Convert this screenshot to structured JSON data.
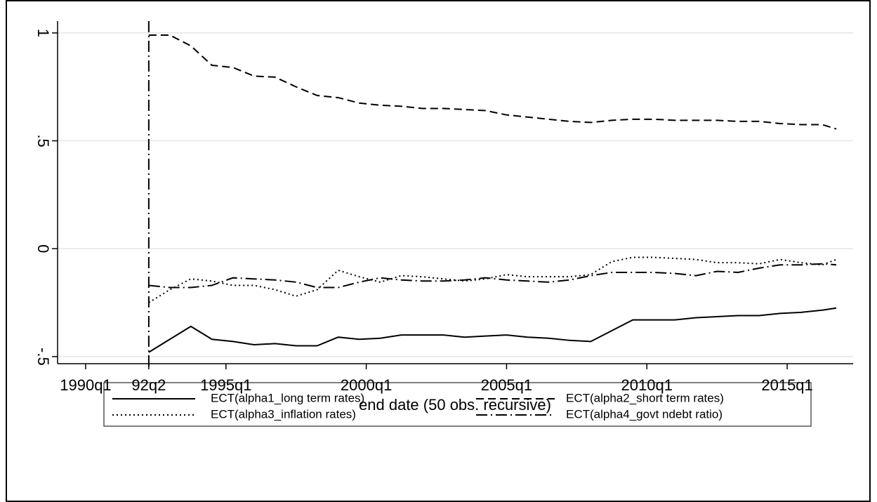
{
  "chart_data": {
    "type": "line",
    "x_label": "end date (50 obs. recursive)",
    "x": [
      129,
      132,
      135,
      138,
      141,
      144,
      147,
      150,
      153,
      156,
      159,
      162,
      165,
      168,
      171,
      174,
      177,
      180,
      183,
      186,
      189,
      192,
      195,
      198,
      201,
      204,
      207,
      210,
      213,
      216,
      219,
      222,
      225,
      227
    ],
    "xlim": [
      116,
      229.4
    ],
    "ylim": [
      -0.533,
      1.055
    ],
    "xticks": [
      {
        "value": 120,
        "label": "1990q1"
      },
      {
        "value": 129,
        "label": "92q2"
      },
      {
        "value": 140,
        "label": "1995q1"
      },
      {
        "value": 160,
        "label": "2000q1"
      },
      {
        "value": 180,
        "label": "2005q1"
      },
      {
        "value": 200,
        "label": "2010q1"
      },
      {
        "value": 220,
        "label": "2015q1"
      }
    ],
    "yticks": [
      {
        "value": -0.5,
        "label": "-.5"
      },
      0,
      {
        "value": 0.5,
        "label": ".5"
      },
      1
    ],
    "xline": 129,
    "grid": true,
    "series": [
      {
        "name": "ECT(alpha1_long term rates)",
        "color": "#000000",
        "dash": "solid",
        "values": [
          -0.48,
          -0.42,
          -0.36,
          -0.42,
          -0.43,
          -0.445,
          -0.44,
          -0.45,
          -0.45,
          -0.41,
          -0.42,
          -0.415,
          -0.4,
          -0.4,
          -0.4,
          -0.41,
          -0.405,
          -0.4,
          -0.41,
          -0.415,
          -0.425,
          -0.43,
          -0.38,
          -0.33,
          -0.33,
          -0.33,
          -0.32,
          -0.315,
          -0.31,
          -0.31,
          -0.3,
          -0.295,
          -0.285,
          -0.275
        ]
      },
      {
        "name": "ECT(alpha2_short term rates)",
        "color": "#000000",
        "dash": "dashed",
        "values": [
          0.99,
          0.99,
          0.94,
          0.85,
          0.84,
          0.8,
          0.795,
          0.75,
          0.71,
          0.7,
          0.675,
          0.665,
          0.66,
          0.65,
          0.65,
          0.645,
          0.64,
          0.62,
          0.61,
          0.6,
          0.59,
          0.585,
          0.595,
          0.6,
          0.6,
          0.595,
          0.595,
          0.595,
          0.59,
          0.59,
          0.58,
          0.575,
          0.575,
          0.555
        ]
      },
      {
        "name": "ECT(alpha3_inflation rates)",
        "color": "#000000",
        "dash": "dotted",
        "values": [
          -0.25,
          -0.19,
          -0.14,
          -0.15,
          -0.17,
          -0.17,
          -0.19,
          -0.22,
          -0.19,
          -0.1,
          -0.13,
          -0.155,
          -0.125,
          -0.13,
          -0.14,
          -0.15,
          -0.14,
          -0.12,
          -0.13,
          -0.13,
          -0.13,
          -0.12,
          -0.06,
          -0.04,
          -0.04,
          -0.045,
          -0.05,
          -0.065,
          -0.065,
          -0.07,
          -0.05,
          -0.065,
          -0.075,
          -0.05
        ]
      },
      {
        "name": "ECT(alpha4_govt ndebt ratio)",
        "color": "#000000",
        "dash": "dashdot",
        "values": [
          -0.17,
          -0.18,
          -0.18,
          -0.17,
          -0.135,
          -0.14,
          -0.145,
          -0.155,
          -0.18,
          -0.18,
          -0.155,
          -0.135,
          -0.145,
          -0.15,
          -0.15,
          -0.145,
          -0.135,
          -0.145,
          -0.15,
          -0.155,
          -0.145,
          -0.125,
          -0.11,
          -0.11,
          -0.11,
          -0.115,
          -0.125,
          -0.105,
          -0.11,
          -0.09,
          -0.075,
          -0.075,
          -0.07,
          -0.075
        ]
      }
    ]
  }
}
